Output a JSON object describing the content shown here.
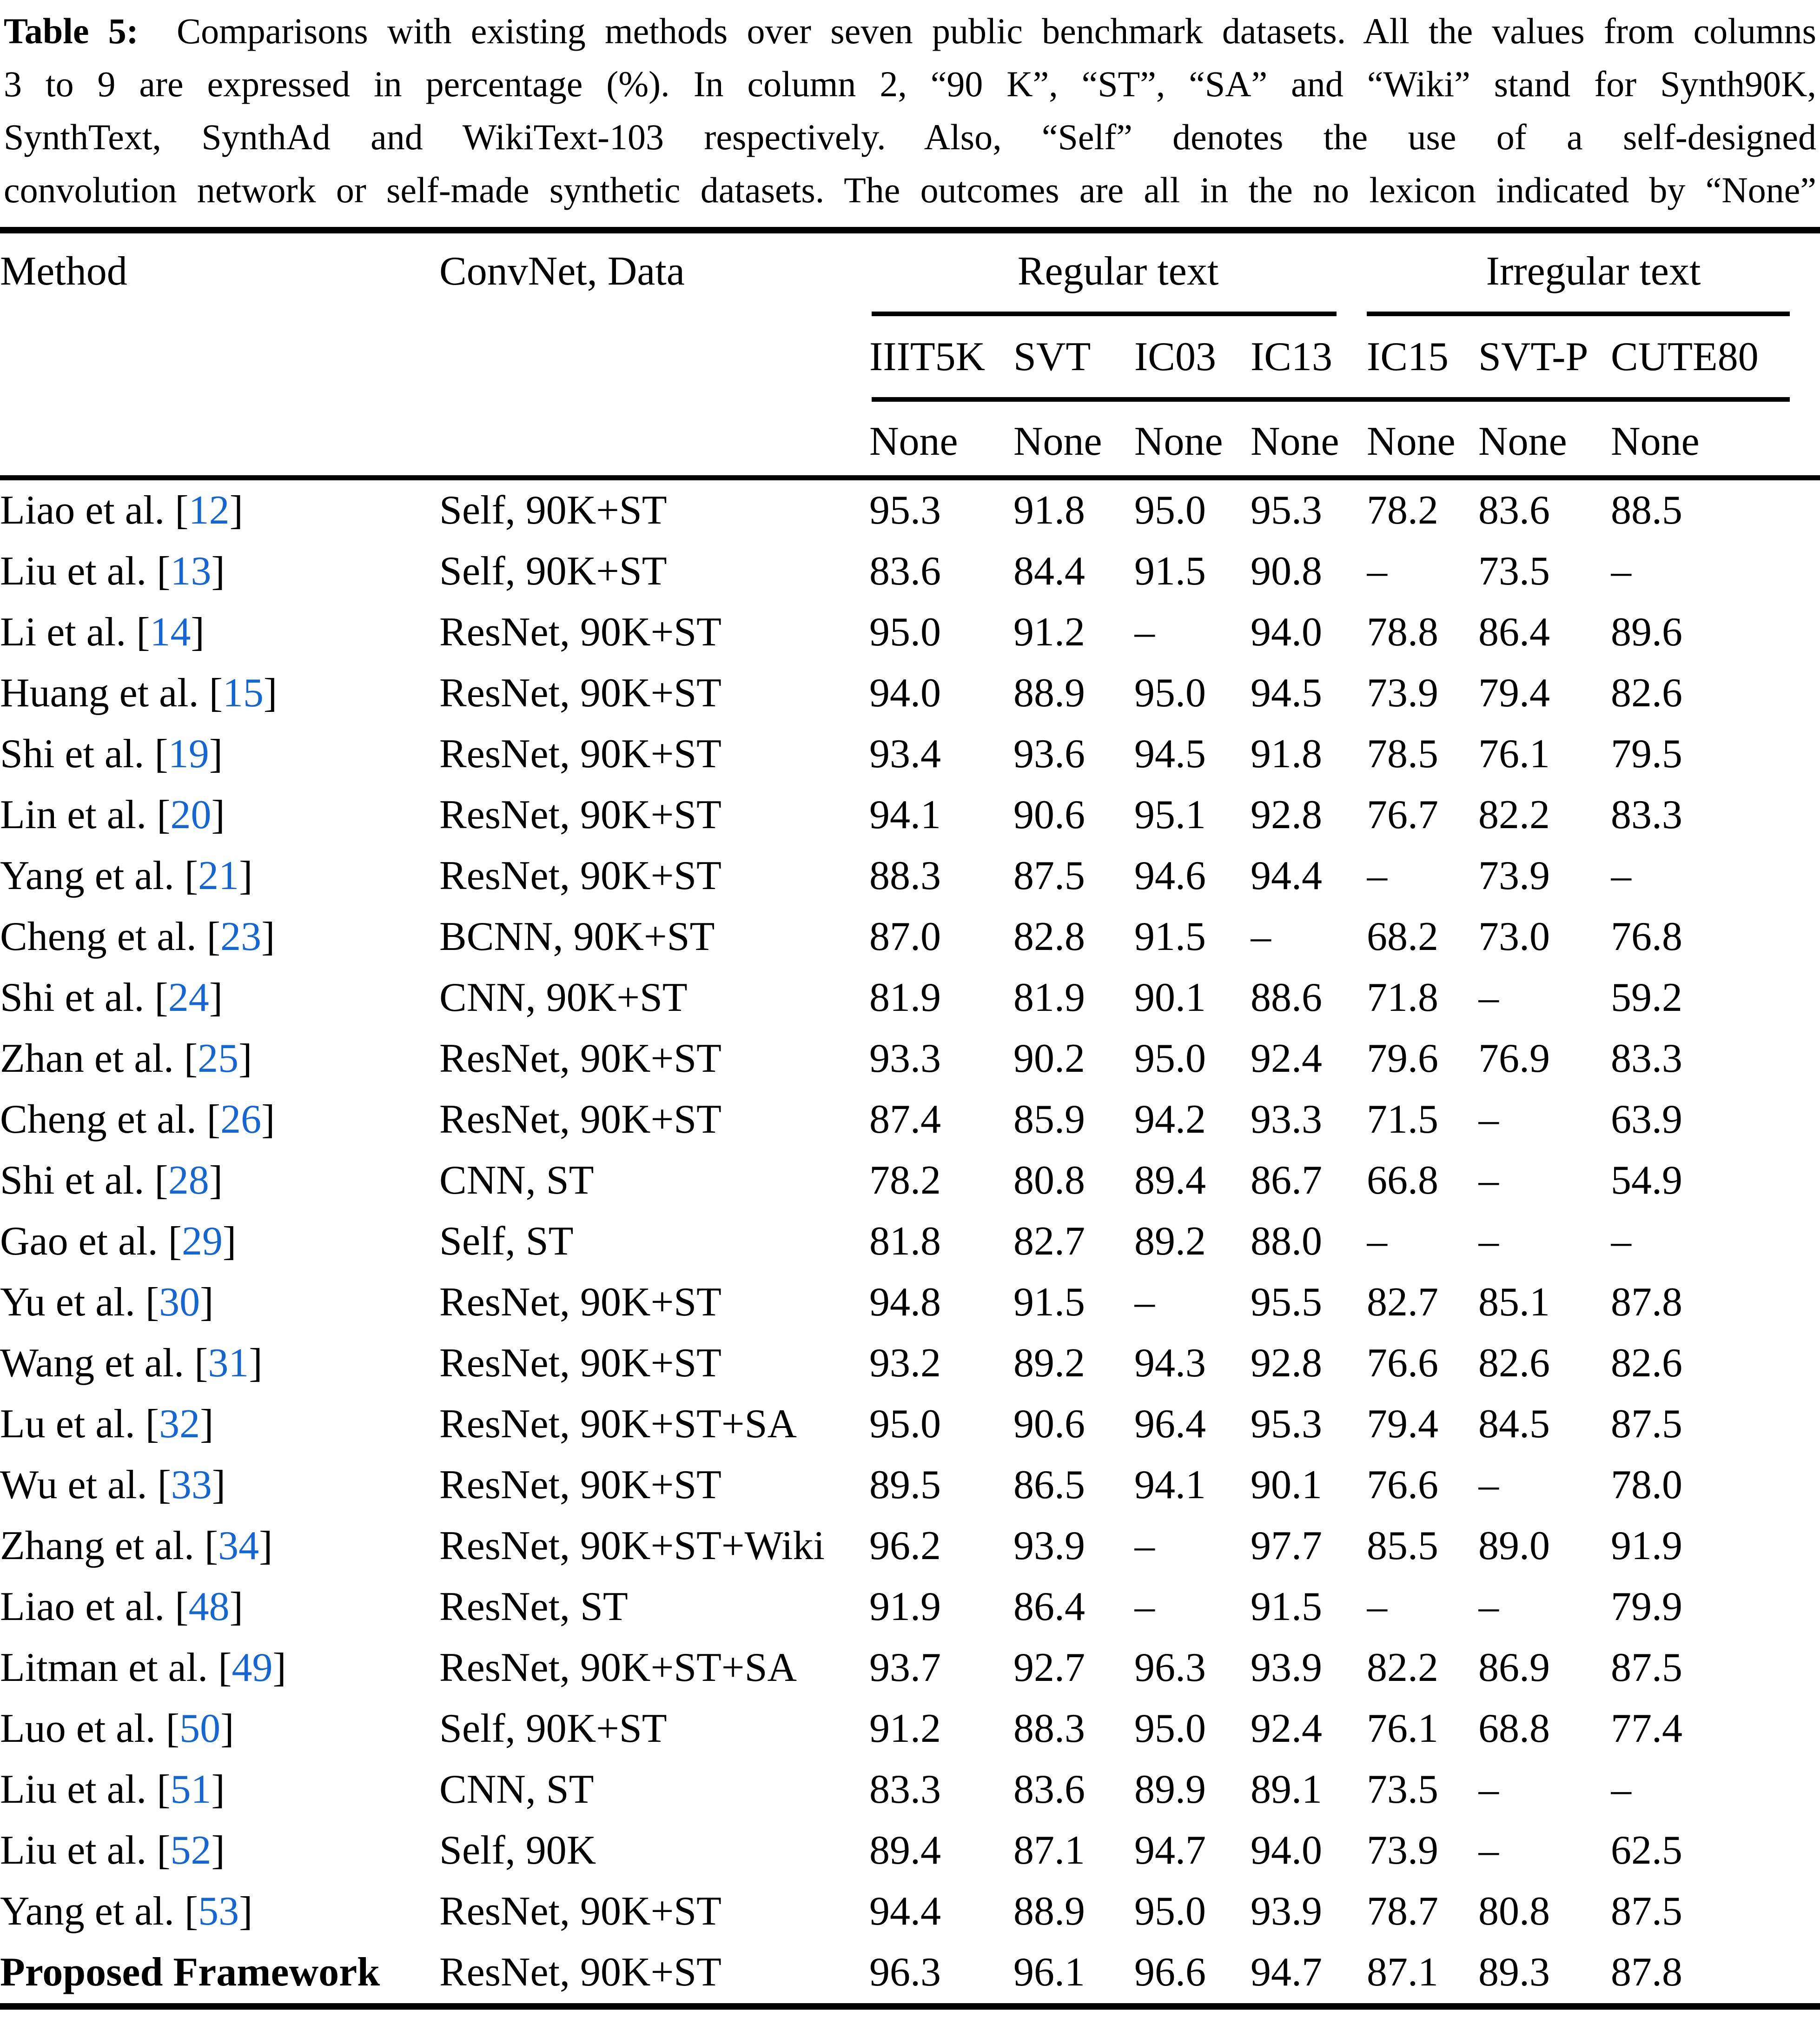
{
  "caption": {
    "label": "Table 5:",
    "lines": [
      "Comparisons with existing methods over seven public benchmark datasets. All the values from columns",
      "3 to 9 are expressed in percentage (%). In column 2, “90 K”, “ST”, “SA” and “Wiki” stand for Synth90K,",
      "SynthText, SynthAd and WikiText-103 respectively. Also, “Self” denotes the use of a self-designed",
      "convolution network or self-made synthetic datasets. The outcomes are all in the no lexicon indicated by “None”"
    ]
  },
  "colors": {
    "citation_blue": "#1366d4",
    "text": "#000000",
    "background": "#ffffff"
  },
  "table": {
    "col_headers": {
      "method": "Method",
      "convnet": "ConvNet, Data"
    },
    "group_headers": [
      {
        "label": "Regular text",
        "span": 4
      },
      {
        "label": "Irregular text",
        "span": 3
      }
    ],
    "dataset_headers": [
      "IIIT5K",
      "SVT",
      "IC03",
      "IC13",
      "IC15",
      "SVT-P",
      "CUTE80"
    ],
    "lexicon_row": [
      "None",
      "None",
      "None",
      "None",
      "None",
      "None",
      "None"
    ],
    "rows": [
      {
        "method": "Liao et al.",
        "ref": "12",
        "method_bold": false,
        "convnet": "Self, 90K+ST",
        "values": [
          "95.3",
          "91.8",
          "95.0",
          "95.3",
          "78.2",
          "83.6",
          "88.5"
        ],
        "bold_values": []
      },
      {
        "method": "Liu et al.",
        "ref": "13",
        "method_bold": false,
        "convnet": "Self, 90K+ST",
        "values": [
          "83.6",
          "84.4",
          "91.5",
          "90.8",
          "–",
          "73.5",
          "–"
        ],
        "bold_values": []
      },
      {
        "method": "Li et al.",
        "ref": "14",
        "method_bold": false,
        "convnet": "ResNet, 90K+ST",
        "values": [
          "95.0",
          "91.2",
          "–",
          "94.0",
          "78.8",
          "86.4",
          "89.6"
        ],
        "bold_values": []
      },
      {
        "method": "Huang et al.",
        "ref": "15",
        "method_bold": false,
        "convnet": "ResNet, 90K+ST",
        "values": [
          "94.0",
          "88.9",
          "95.0",
          "94.5",
          "73.9",
          "79.4",
          "82.6"
        ],
        "bold_values": []
      },
      {
        "method": "Shi et al.",
        "ref": "19",
        "method_bold": false,
        "convnet": "ResNet, 90K+ST",
        "values": [
          "93.4",
          "93.6",
          "94.5",
          "91.8",
          "78.5",
          "76.1",
          "79.5"
        ],
        "bold_values": []
      },
      {
        "method": "Lin et al.",
        "ref": "20",
        "method_bold": false,
        "convnet": "ResNet, 90K+ST",
        "values": [
          "94.1",
          "90.6",
          "95.1",
          "92.8",
          "76.7",
          "82.2",
          "83.3"
        ],
        "bold_values": []
      },
      {
        "method": "Yang et al.",
        "ref": "21",
        "method_bold": false,
        "convnet": "ResNet, 90K+ST",
        "values": [
          "88.3",
          "87.5",
          "94.6",
          "94.4",
          "–",
          "73.9",
          "–"
        ],
        "bold_values": []
      },
      {
        "method": "Cheng et al.",
        "ref": "23",
        "method_bold": false,
        "convnet": "BCNN, 90K+ST",
        "values": [
          "87.0",
          "82.8",
          "91.5",
          "–",
          "68.2",
          "73.0",
          "76.8"
        ],
        "bold_values": []
      },
      {
        "method": "Shi et al.",
        "ref": "24",
        "method_bold": false,
        "convnet": "CNN, 90K+ST",
        "values": [
          "81.9",
          "81.9",
          "90.1",
          "88.6",
          "71.8",
          "–",
          "59.2"
        ],
        "bold_values": []
      },
      {
        "method": "Zhan et al.",
        "ref": "25",
        "method_bold": false,
        "convnet": "ResNet, 90K+ST",
        "values": [
          "93.3",
          "90.2",
          "95.0",
          "92.4",
          "79.6",
          "76.9",
          "83.3"
        ],
        "bold_values": []
      },
      {
        "method": "Cheng et al.",
        "ref": "26",
        "method_bold": false,
        "convnet": "ResNet, 90K+ST",
        "values": [
          "87.4",
          "85.9",
          "94.2",
          "93.3",
          "71.5",
          "–",
          "63.9"
        ],
        "bold_values": []
      },
      {
        "method": "Shi et al.",
        "ref": "28",
        "method_bold": false,
        "convnet": "CNN, ST",
        "values": [
          "78.2",
          "80.8",
          "89.4",
          "86.7",
          "66.8",
          "–",
          "54.9"
        ],
        "bold_values": []
      },
      {
        "method": "Gao et al.",
        "ref": "29",
        "method_bold": false,
        "convnet": "Self, ST",
        "values": [
          "81.8",
          "82.7",
          "89.2",
          "88.0",
          "–",
          "–",
          "–"
        ],
        "bold_values": []
      },
      {
        "method": "Yu et al.",
        "ref": "30",
        "method_bold": false,
        "convnet": "ResNet, 90K+ST",
        "values": [
          "94.8",
          "91.5",
          "–",
          "95.5",
          "82.7",
          "85.1",
          "87.8"
        ],
        "bold_values": []
      },
      {
        "method": "Wang et al.",
        "ref": "31",
        "method_bold": false,
        "convnet": "ResNet, 90K+ST",
        "values": [
          "93.2",
          "89.2",
          "94.3",
          "92.8",
          "76.6",
          "82.6",
          "82.6"
        ],
        "bold_values": []
      },
      {
        "method": "Lu et al.",
        "ref": "32",
        "method_bold": false,
        "convnet": "ResNet, 90K+ST+SA",
        "values": [
          "95.0",
          "90.6",
          "96.4",
          "95.3",
          "79.4",
          "84.5",
          "87.5"
        ],
        "bold_values": []
      },
      {
        "method": "Wu et al.",
        "ref": "33",
        "method_bold": false,
        "convnet": "ResNet, 90K+ST",
        "values": [
          "89.5",
          "86.5",
          "94.1",
          "90.1",
          "76.6",
          "–",
          "78.0"
        ],
        "bold_values": []
      },
      {
        "method": "Zhang et al.",
        "ref": "34",
        "method_bold": false,
        "convnet": "ResNet, 90K+ST+Wiki",
        "values": [
          "96.2",
          "93.9",
          "–",
          "97.7",
          "85.5",
          "89.0",
          "91.9"
        ],
        "bold_values": [
          3,
          6
        ]
      },
      {
        "method": "Liao et al.",
        "ref": "48",
        "method_bold": false,
        "convnet": "ResNet, ST",
        "values": [
          "91.9",
          "86.4",
          "–",
          "91.5",
          "–",
          "–",
          "79.9"
        ],
        "bold_values": []
      },
      {
        "method": "Litman et al.",
        "ref": "49",
        "method_bold": false,
        "convnet": "ResNet, 90K+ST+SA",
        "values": [
          "93.7",
          "92.7",
          "96.3",
          "93.9",
          "82.2",
          "86.9",
          "87.5"
        ],
        "bold_values": []
      },
      {
        "method": "Luo et al.",
        "ref": "50",
        "method_bold": false,
        "convnet": "Self, 90K+ST",
        "values": [
          "91.2",
          "88.3",
          "95.0",
          "92.4",
          "76.1",
          "68.8",
          "77.4"
        ],
        "bold_values": []
      },
      {
        "method": "Liu et al.",
        "ref": "51",
        "method_bold": false,
        "convnet": "CNN, ST",
        "values": [
          "83.3",
          "83.6",
          "89.9",
          "89.1",
          "73.5",
          "–",
          "–"
        ],
        "bold_values": []
      },
      {
        "method": "Liu et al.",
        "ref": "52",
        "method_bold": false,
        "convnet": "Self, 90K",
        "values": [
          "89.4",
          "87.1",
          "94.7",
          "94.0",
          "73.9",
          "–",
          "62.5"
        ],
        "bold_values": []
      },
      {
        "method": "Yang et al.",
        "ref": "53",
        "method_bold": false,
        "convnet": "ResNet, 90K+ST",
        "values": [
          "94.4",
          "88.9",
          "95.0",
          "93.9",
          "78.7",
          "80.8",
          "87.5"
        ],
        "bold_values": []
      },
      {
        "method": "Proposed Framework",
        "ref": null,
        "method_bold": true,
        "convnet": "ResNet, 90K+ST",
        "values": [
          "96.3",
          "96.1",
          "96.6",
          "94.7",
          "87.1",
          "89.3",
          "87.8"
        ],
        "bold_values": [
          0,
          1,
          2,
          4,
          5
        ]
      }
    ]
  }
}
